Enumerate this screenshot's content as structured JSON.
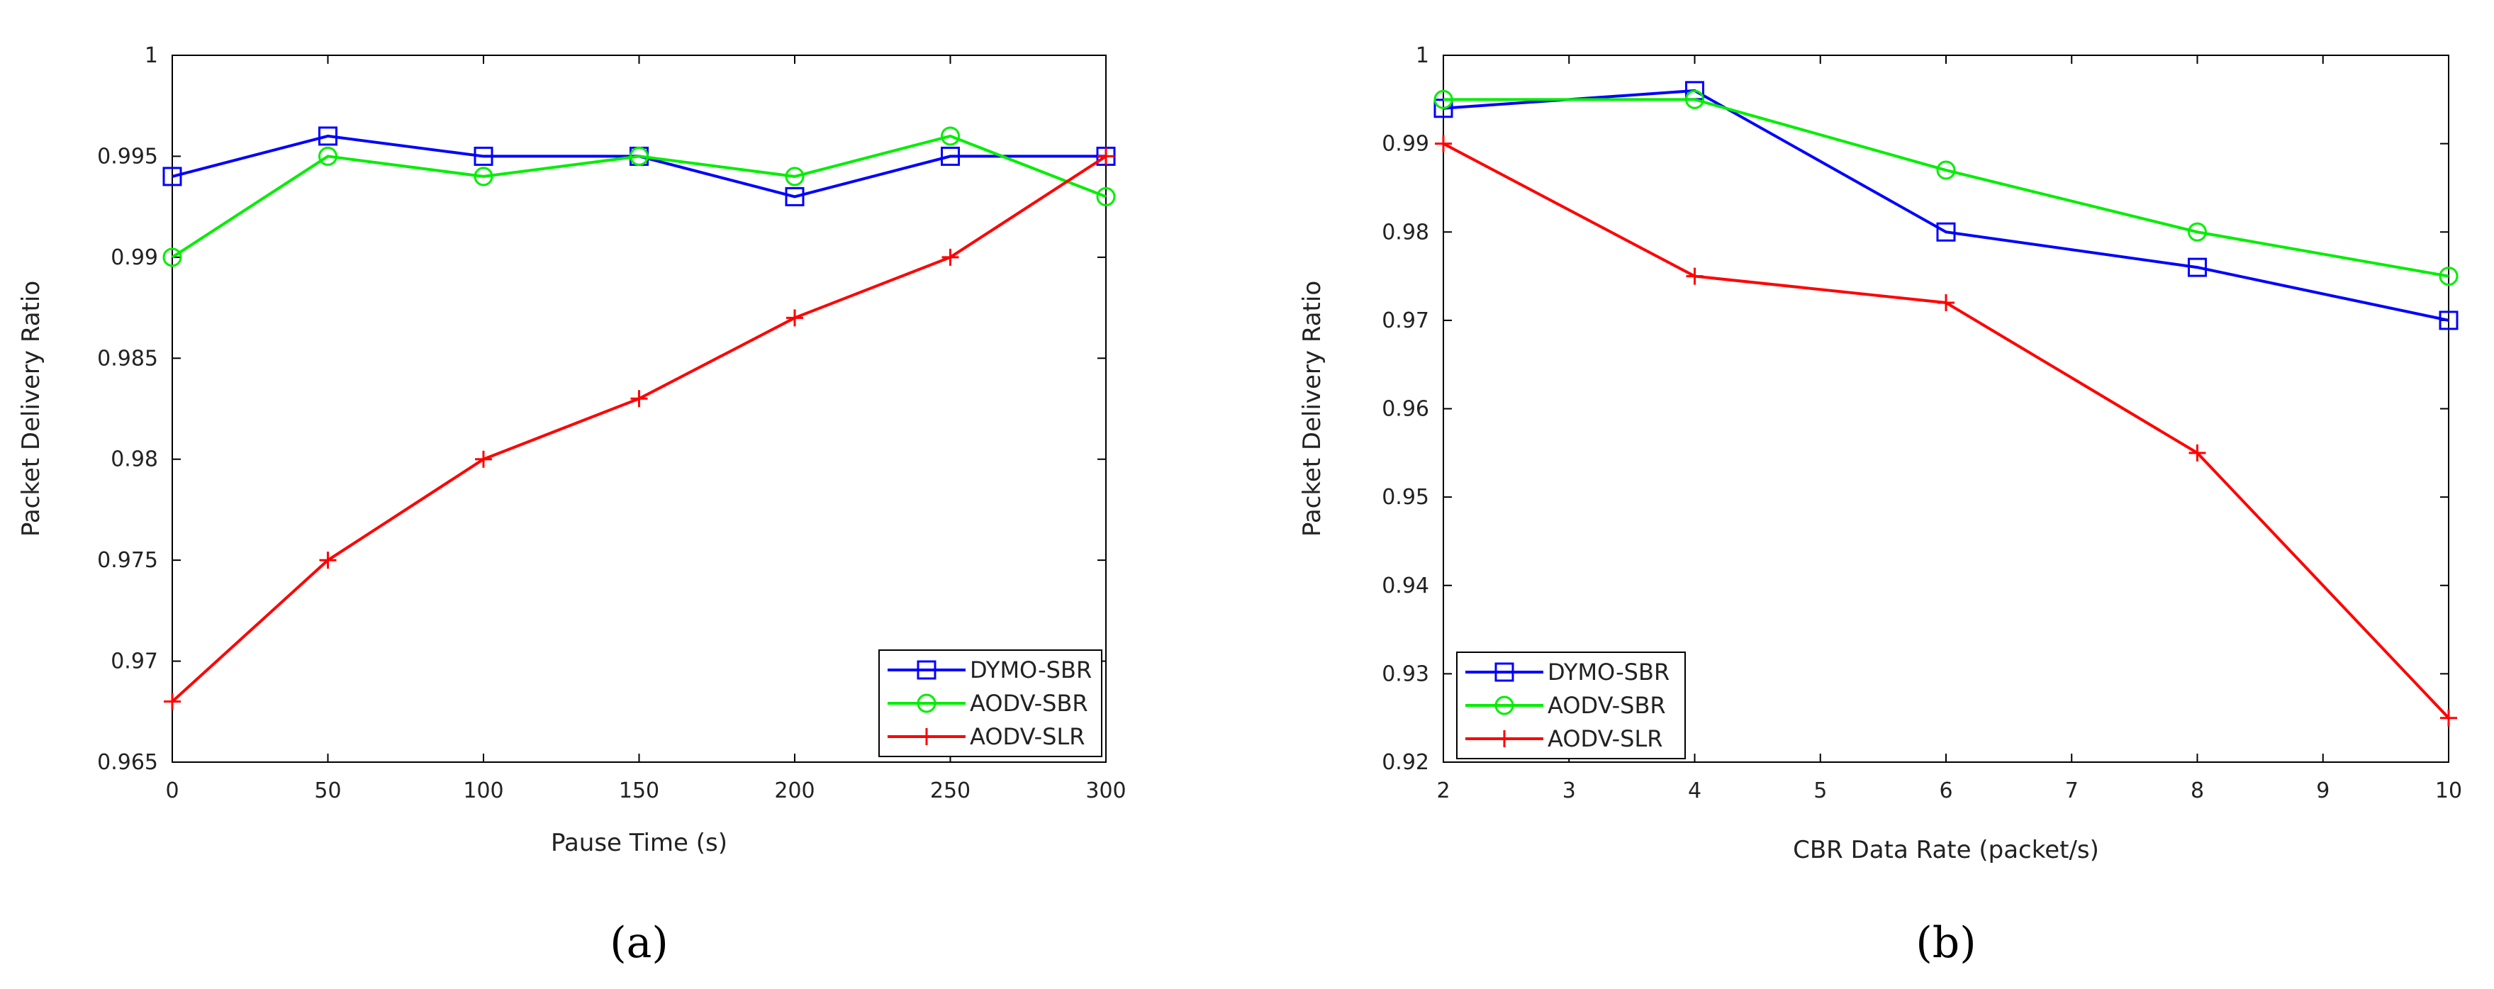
{
  "colors": {
    "dymo": "#0000ff",
    "aodv_sbr": "#00ee00",
    "aodv_slr": "#ff0000",
    "axes": "#000000"
  },
  "chart_data": [
    {
      "type": "line",
      "caption": "(a)",
      "title": "",
      "xlabel": "Pause Time (s)",
      "ylabel": "Packet Delivery Ratio",
      "xlim": [
        0,
        300
      ],
      "ylim": [
        0.965,
        1
      ],
      "xticks": [
        "0",
        "50",
        "100",
        "150",
        "200",
        "250",
        "300"
      ],
      "yticks": [
        "0.965",
        "0.97",
        "0.975",
        "0.98",
        "0.985",
        "0.99",
        "0.995",
        "1"
      ],
      "x": [
        0,
        50,
        100,
        150,
        200,
        250,
        300
      ],
      "legend_position": "bottom-right",
      "series": [
        {
          "name": "DYMO-SBR",
          "marker": "square",
          "values": [
            0.994,
            0.996,
            0.995,
            0.995,
            0.993,
            0.995,
            0.995
          ]
        },
        {
          "name": "AODV-SBR",
          "marker": "circle",
          "values": [
            0.99,
            0.995,
            0.994,
            0.995,
            0.994,
            0.996,
            0.993
          ]
        },
        {
          "name": "AODV-SLR",
          "marker": "plus",
          "values": [
            0.968,
            0.975,
            0.98,
            0.983,
            0.987,
            0.99,
            0.995
          ]
        }
      ]
    },
    {
      "type": "line",
      "caption": "(b)",
      "title": "",
      "xlabel": "CBR Data Rate (packet/s)",
      "ylabel": "Packet Delivery Ratio",
      "xlim": [
        2,
        10
      ],
      "ylim": [
        0.92,
        1
      ],
      "xticks": [
        "2",
        "3",
        "4",
        "5",
        "6",
        "7",
        "8",
        "9",
        "10"
      ],
      "yticks": [
        "0.92",
        "0.93",
        "0.94",
        "0.95",
        "0.96",
        "0.97",
        "0.98",
        "0.99",
        "1"
      ],
      "x": [
        2,
        4,
        6,
        8,
        10
      ],
      "legend_position": "bottom-left",
      "series": [
        {
          "name": "DYMO-SBR",
          "marker": "square",
          "values": [
            0.994,
            0.996,
            0.98,
            0.976,
            0.97
          ]
        },
        {
          "name": "AODV-SBR",
          "marker": "circle",
          "values": [
            0.995,
            0.995,
            0.987,
            0.98,
            0.975
          ]
        },
        {
          "name": "AODV-SLR",
          "marker": "plus",
          "values": [
            0.99,
            0.975,
            0.972,
            0.955,
            0.925
          ]
        }
      ]
    }
  ]
}
